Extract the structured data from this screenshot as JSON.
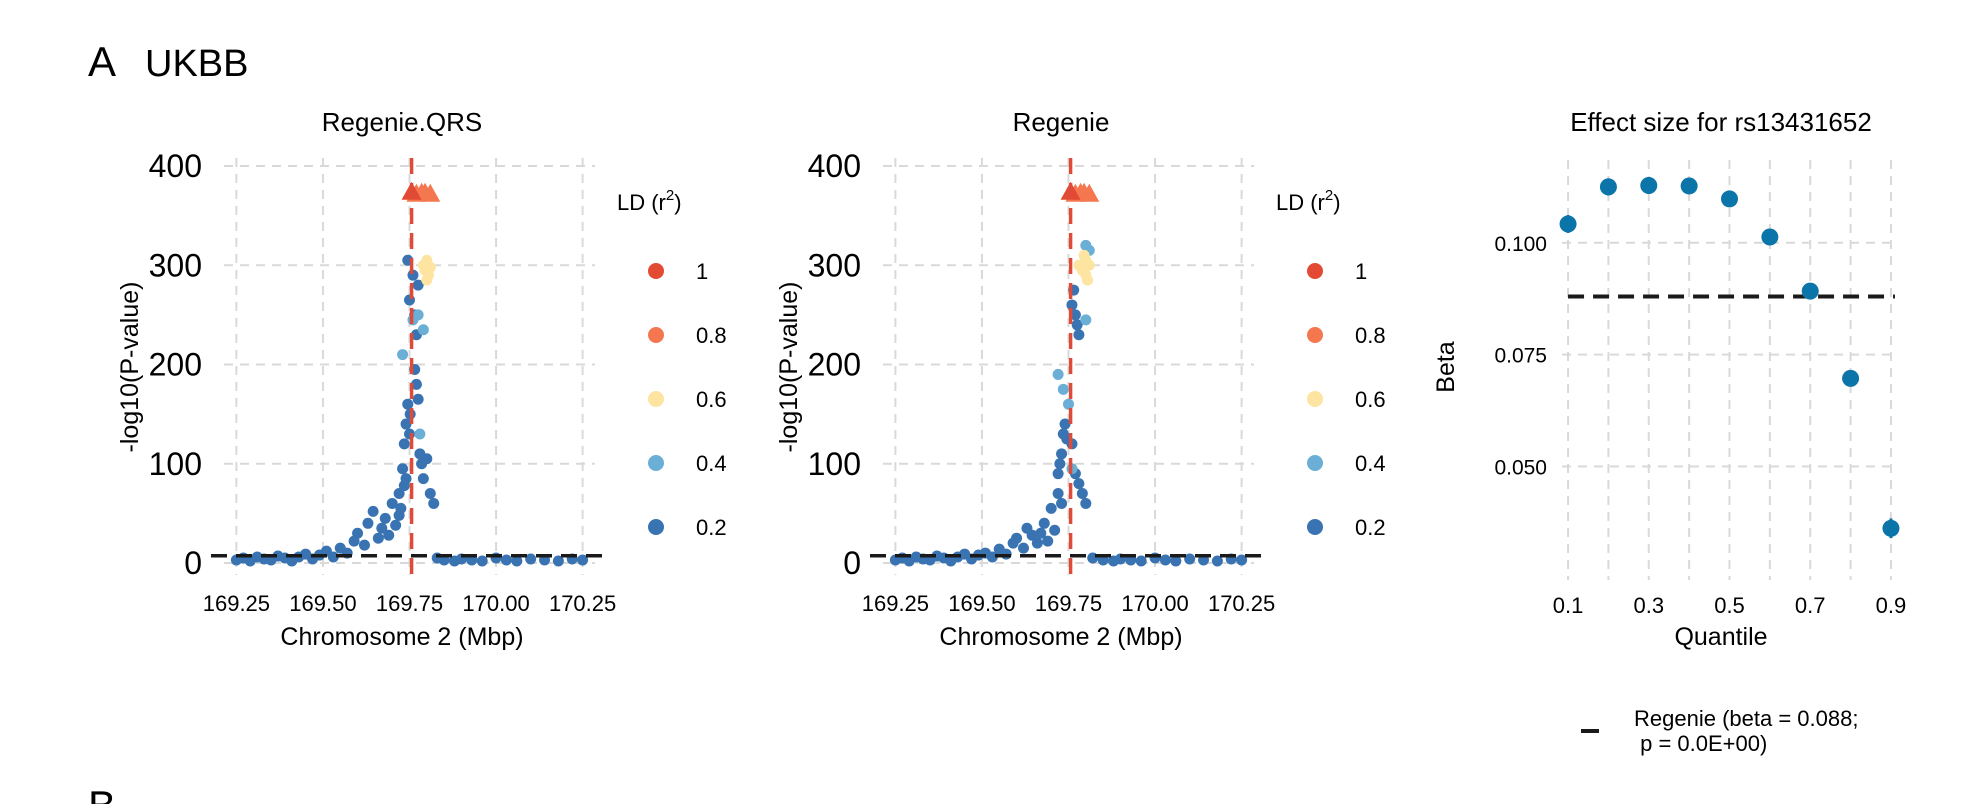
{
  "figure": {
    "panel_letter": "A",
    "panel_title": "UKBB",
    "next_panel_letter": "B"
  },
  "palette": {
    "ld_1": "#e34a33",
    "ld_08": "#f4774f",
    "ld_06": "#fde4a0",
    "ld_04": "#6baed6",
    "ld_02": "#3a73b2",
    "vline": "#de4b3a",
    "threshold": "#1a1a1a",
    "beta_point": "#0b74a8",
    "grid": "#d9d9d9"
  },
  "legend_ld": {
    "title": "LD (r²)",
    "title_main": "LD (r",
    "title_sup": "2",
    "title_end": ")",
    "items": [
      {
        "label": "1",
        "color": "#e34a33"
      },
      {
        "label": "0.8",
        "color": "#f4774f"
      },
      {
        "label": "0.6",
        "color": "#fde4a0"
      },
      {
        "label": "0.4",
        "color": "#6baed6"
      },
      {
        "label": "0.2",
        "color": "#3a73b2"
      }
    ]
  },
  "legend_beta": {
    "line1": "Regenie (beta = 0.088;",
    "line2": " p = 0.0E+00)"
  },
  "chart_data": [
    {
      "type": "scatter",
      "title": "Regenie.QRS",
      "xlabel": "Chromosome 2 (Mbp)",
      "ylabel": "-log10(P-value)",
      "xlim": [
        169.22,
        170.28
      ],
      "ylim": [
        0,
        400
      ],
      "xticks": [
        169.25,
        169.5,
        169.75,
        170.0,
        170.25
      ],
      "xtick_labels": [
        "169.25",
        "169.50",
        "169.75",
        "170.00",
        "170.25"
      ],
      "yticks": [
        0,
        100,
        200,
        300,
        400
      ],
      "ytick_labels": [
        "0",
        "100",
        "200",
        "300",
        "400"
      ],
      "lead_snp_position": 169.756,
      "lead_snp_logp": 374,
      "significance_line": 7.3,
      "grid": true,
      "legend": "right",
      "series": [
        {
          "ld": 0.2,
          "color": "#3a73b2",
          "points": [
            [
              169.25,
              3
            ],
            [
              169.27,
              5
            ],
            [
              169.29,
              2
            ],
            [
              169.31,
              6
            ],
            [
              169.33,
              4
            ],
            [
              169.35,
              3
            ],
            [
              169.37,
              7
            ],
            [
              169.39,
              5
            ],
            [
              169.41,
              2
            ],
            [
              169.43,
              6
            ],
            [
              169.45,
              9
            ],
            [
              169.47,
              4
            ],
            [
              169.49,
              8
            ],
            [
              169.51,
              12
            ],
            [
              169.53,
              6
            ],
            [
              169.55,
              15
            ],
            [
              169.57,
              10
            ],
            [
              169.59,
              22
            ],
            [
              169.6,
              30
            ],
            [
              169.62,
              18
            ],
            [
              169.63,
              40
            ],
            [
              169.645,
              52
            ],
            [
              169.66,
              25
            ],
            [
              169.67,
              35
            ],
            [
              169.68,
              45
            ],
            [
              169.69,
              28
            ],
            [
              169.7,
              60
            ],
            [
              169.71,
              38
            ],
            [
              169.72,
              70
            ],
            [
              169.725,
              55
            ],
            [
              169.73,
              95
            ],
            [
              169.735,
              120
            ],
            [
              169.74,
              140
            ],
            [
              169.745,
              160
            ],
            [
              169.75,
              130
            ],
            [
              169.752,
              150
            ],
            [
              169.74,
              85
            ],
            [
              169.735,
              78
            ],
            [
              169.72,
              48
            ],
            [
              169.745,
              305
            ],
            [
              169.75,
              265
            ],
            [
              169.76,
              290
            ],
            [
              169.765,
              250
            ],
            [
              169.77,
              230
            ],
            [
              169.775,
              280
            ],
            [
              169.765,
              195
            ],
            [
              169.77,
              180
            ],
            [
              169.775,
              165
            ],
            [
              169.78,
              110
            ],
            [
              169.785,
              100
            ],
            [
              169.79,
              85
            ],
            [
              169.8,
              105
            ],
            [
              169.81,
              70
            ],
            [
              169.82,
              60
            ],
            [
              169.83,
              5
            ],
            [
              169.85,
              3
            ],
            [
              169.88,
              2
            ],
            [
              169.9,
              4
            ],
            [
              169.93,
              3
            ],
            [
              169.96,
              2
            ],
            [
              170.0,
              5
            ],
            [
              170.03,
              3
            ],
            [
              170.06,
              2
            ],
            [
              170.1,
              4
            ],
            [
              170.14,
              3
            ],
            [
              170.18,
              2
            ],
            [
              170.22,
              4
            ],
            [
              170.25,
              3
            ]
          ]
        },
        {
          "ld": 0.4,
          "color": "#6baed6",
          "points": [
            [
              169.73,
              210
            ],
            [
              169.76,
              245
            ],
            [
              169.775,
              250
            ],
            [
              169.79,
              235
            ],
            [
              169.78,
              130
            ]
          ]
        },
        {
          "ld": 0.6,
          "color": "#fde4a0",
          "points": [
            [
              169.79,
              300
            ],
            [
              169.795,
              295
            ],
            [
              169.8,
              305
            ],
            [
              169.805,
              290
            ],
            [
              169.8,
              285
            ],
            [
              169.81,
              298
            ]
          ]
        },
        {
          "ld": 0.8,
          "color": "#f4774f",
          "points": [
            [
              169.77,
              372
            ],
            [
              169.785,
              373
            ],
            [
              169.795,
              373
            ],
            [
              169.81,
              372
            ]
          ]
        },
        {
          "ld": 1,
          "color": "#e34a33",
          "points": [
            [
              169.756,
              374
            ]
          ]
        }
      ]
    },
    {
      "type": "scatter",
      "title": "Regenie",
      "xlabel": "Chromosome 2 (Mbp)",
      "ylabel": "-log10(P-value)",
      "xlim": [
        169.22,
        170.28
      ],
      "ylim": [
        0,
        400
      ],
      "xticks": [
        169.25,
        169.5,
        169.75,
        170.0,
        170.25
      ],
      "xtick_labels": [
        "169.25",
        "169.50",
        "169.75",
        "170.00",
        "170.25"
      ],
      "yticks": [
        0,
        100,
        200,
        300,
        400
      ],
      "ytick_labels": [
        "0",
        "100",
        "200",
        "300",
        "400"
      ],
      "lead_snp_position": 169.756,
      "lead_snp_logp": 374,
      "significance_line": 7.3,
      "grid": true,
      "legend": "right",
      "series": [
        {
          "ld": 0.2,
          "color": "#3a73b2",
          "points": [
            [
              169.25,
              3
            ],
            [
              169.27,
              5
            ],
            [
              169.29,
              2
            ],
            [
              169.31,
              6
            ],
            [
              169.33,
              4
            ],
            [
              169.35,
              3
            ],
            [
              169.37,
              7
            ],
            [
              169.39,
              5
            ],
            [
              169.41,
              2
            ],
            [
              169.43,
              6
            ],
            [
              169.45,
              9
            ],
            [
              169.47,
              4
            ],
            [
              169.49,
              8
            ],
            [
              169.51,
              10
            ],
            [
              169.53,
              6
            ],
            [
              169.55,
              14
            ],
            [
              169.57,
              9
            ],
            [
              169.59,
              20
            ],
            [
              169.6,
              25
            ],
            [
              169.62,
              15
            ],
            [
              169.63,
              35
            ],
            [
              169.645,
              28
            ],
            [
              169.66,
              20
            ],
            [
              169.67,
              30
            ],
            [
              169.68,
              40
            ],
            [
              169.69,
              22
            ],
            [
              169.7,
              55
            ],
            [
              169.71,
              33
            ],
            [
              169.72,
              90
            ],
            [
              169.725,
              100
            ],
            [
              169.73,
              110
            ],
            [
              169.735,
              130
            ],
            [
              169.74,
              140
            ],
            [
              169.745,
              125
            ],
            [
              169.72,
              70
            ],
            [
              169.73,
              60
            ],
            [
              169.76,
              260
            ],
            [
              169.765,
              275
            ],
            [
              169.77,
              250
            ],
            [
              169.775,
              240
            ],
            [
              169.78,
              230
            ],
            [
              169.76,
              120
            ],
            [
              169.77,
              90
            ],
            [
              169.78,
              80
            ],
            [
              169.79,
              70
            ],
            [
              169.8,
              60
            ],
            [
              169.82,
              5
            ],
            [
              169.85,
              3
            ],
            [
              169.88,
              2
            ],
            [
              169.9,
              4
            ],
            [
              169.93,
              3
            ],
            [
              169.96,
              2
            ],
            [
              170.0,
              5
            ],
            [
              170.03,
              3
            ],
            [
              170.06,
              2
            ],
            [
              170.1,
              4
            ],
            [
              170.14,
              3
            ],
            [
              170.18,
              2
            ],
            [
              170.22,
              4
            ],
            [
              170.25,
              3
            ]
          ]
        },
        {
          "ld": 0.4,
          "color": "#6baed6",
          "points": [
            [
              169.72,
              190
            ],
            [
              169.735,
              175
            ],
            [
              169.75,
              160
            ],
            [
              169.8,
              320
            ],
            [
              169.81,
              315
            ],
            [
              169.8,
              245
            ],
            [
              169.76,
              95
            ]
          ]
        },
        {
          "ld": 0.6,
          "color": "#fde4a0",
          "points": [
            [
              169.78,
              300
            ],
            [
              169.79,
              295
            ],
            [
              169.795,
              310
            ],
            [
              169.8,
              305
            ],
            [
              169.805,
              285
            ],
            [
              169.81,
              300
            ],
            [
              169.8,
              290
            ]
          ]
        },
        {
          "ld": 0.8,
          "color": "#f4774f",
          "points": [
            [
              169.77,
              372
            ],
            [
              169.785,
              373
            ],
            [
              169.795,
              373
            ],
            [
              169.81,
              372
            ]
          ]
        },
        {
          "ld": 1,
          "color": "#e34a33",
          "points": [
            [
              169.756,
              374
            ]
          ]
        }
      ]
    },
    {
      "type": "scatter",
      "title": "Effect size for rs13431652",
      "xlabel": "Quantile",
      "ylabel": "Beta",
      "xlim": [
        0.085,
        0.915
      ],
      "ylim": [
        0.028,
        0.1185
      ],
      "xticks": [
        0.1,
        0.3,
        0.5,
        0.7,
        0.9
      ],
      "xtick_labels": [
        "0.1",
        "0.3",
        "0.5",
        "0.7",
        "0.9"
      ],
      "xgrid_minor": [
        0.2,
        0.4,
        0.6,
        0.8
      ],
      "yticks": [
        0.05,
        0.075,
        0.1
      ],
      "ytick_labels": [
        "0.050",
        "0.075",
        "0.100"
      ],
      "reference_beta": 0.088,
      "grid": true,
      "legend": "bottom",
      "x": [
        0.1,
        0.2,
        0.3,
        0.4,
        0.5,
        0.6,
        0.7,
        0.8,
        0.9
      ],
      "beta": [
        0.1042,
        0.1125,
        0.1128,
        0.1127,
        0.1098,
        0.1013,
        0.0892,
        0.0697,
        0.0362
      ],
      "ci_low": [
        0.1022,
        0.1106,
        0.1109,
        0.1109,
        0.1082,
        0.0998,
        0.0877,
        0.0681,
        0.034
      ],
      "ci_high": [
        0.1062,
        0.1144,
        0.1147,
        0.1145,
        0.1114,
        0.1028,
        0.0907,
        0.0713,
        0.0384
      ]
    }
  ]
}
